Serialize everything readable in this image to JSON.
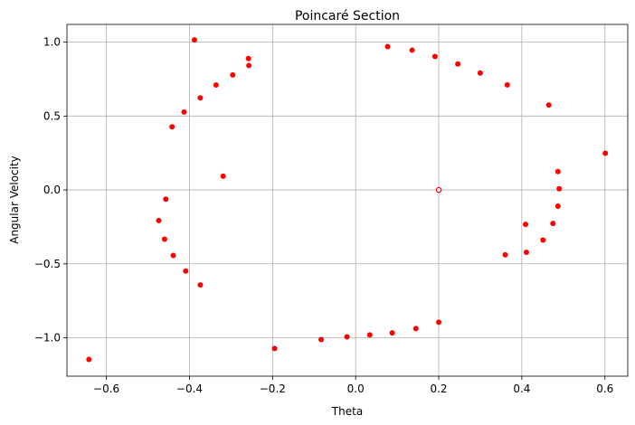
{
  "chart_data": {
    "type": "scatter",
    "title": "Poincaré Section",
    "xlabel": "Theta",
    "ylabel": "Angular Velocity",
    "xlim": [
      -0.695,
      0.655
    ],
    "ylim": [
      -1.26,
      1.12
    ],
    "x_ticks": [
      -0.6,
      -0.4,
      -0.2,
      0.0,
      0.2,
      0.4,
      0.6
    ],
    "x_tick_labels": [
      "−0.6",
      "−0.4",
      "−0.2",
      "0.0",
      "0.2",
      "0.4",
      "0.6"
    ],
    "y_ticks": [
      -1.0,
      -0.5,
      0.0,
      0.5,
      1.0
    ],
    "y_tick_labels": [
      "−1.0",
      "−0.5",
      "0.0",
      "0.5",
      "1.0"
    ],
    "grid": true,
    "marker_color": "#ff0000",
    "series": [
      {
        "points": [
          {
            "x": -0.388,
            "y": 1.015
          },
          {
            "x": -0.258,
            "y": 0.889
          },
          {
            "x": -0.257,
            "y": 0.842
          },
          {
            "x": -0.296,
            "y": 0.778
          },
          {
            "x": -0.336,
            "y": 0.71
          },
          {
            "x": -0.374,
            "y": 0.623
          },
          {
            "x": -0.413,
            "y": 0.527
          },
          {
            "x": -0.442,
            "y": 0.427
          },
          {
            "x": -0.319,
            "y": 0.093
          },
          {
            "x": -0.457,
            "y": -0.062
          },
          {
            "x": -0.474,
            "y": -0.207
          },
          {
            "x": -0.46,
            "y": -0.333
          },
          {
            "x": -0.439,
            "y": -0.443
          },
          {
            "x": -0.409,
            "y": -0.549
          },
          {
            "x": -0.374,
            "y": -0.643
          },
          {
            "x": -0.642,
            "y": -1.147
          },
          {
            "x": -0.195,
            "y": -1.073
          },
          {
            "x": -0.083,
            "y": -1.012
          },
          {
            "x": -0.021,
            "y": -0.994
          },
          {
            "x": 0.034,
            "y": -0.981
          },
          {
            "x": 0.088,
            "y": -0.967
          },
          {
            "x": 0.145,
            "y": -0.938
          },
          {
            "x": 0.2,
            "y": -0.895
          },
          {
            "x": 0.077,
            "y": 0.97
          },
          {
            "x": 0.136,
            "y": 0.946
          },
          {
            "x": 0.191,
            "y": 0.903
          },
          {
            "x": 0.246,
            "y": 0.852
          },
          {
            "x": 0.3,
            "y": 0.791
          },
          {
            "x": 0.365,
            "y": 0.711
          },
          {
            "x": 0.465,
            "y": 0.575
          },
          {
            "x": 0.601,
            "y": 0.248
          },
          {
            "x": 0.487,
            "y": 0.124
          },
          {
            "x": 0.49,
            "y": 0.008
          },
          {
            "x": 0.487,
            "y": -0.11
          },
          {
            "x": 0.409,
            "y": -0.233
          },
          {
            "x": 0.475,
            "y": -0.227
          },
          {
            "x": 0.451,
            "y": -0.339
          },
          {
            "x": 0.411,
            "y": -0.422
          },
          {
            "x": 0.36,
            "y": -0.439
          },
          {
            "x": 0.2,
            "y": 0.0,
            "hollow": true
          }
        ]
      }
    ]
  }
}
